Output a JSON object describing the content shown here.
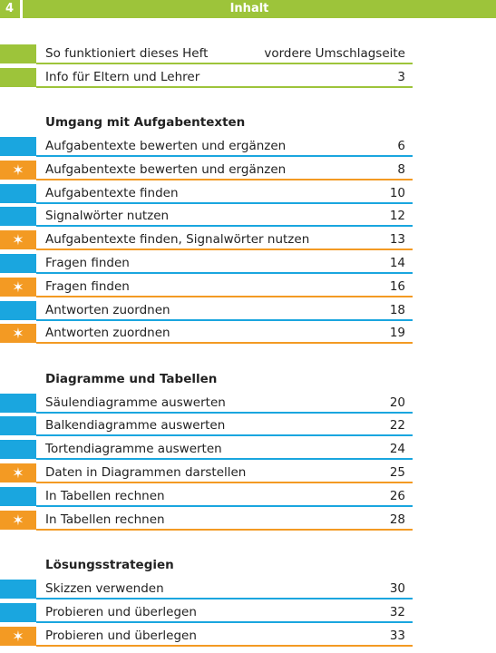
{
  "header": {
    "page_number": "4",
    "title": "Inhalt"
  },
  "sections": [
    {
      "rows": [
        {
          "label": "So funktioniert dieses Heft",
          "page": "vordere Umschlagseite",
          "color": "#9dc43a"
        },
        {
          "label": "Info für Eltern und Lehrer",
          "page": "3",
          "color": "#9dc43a"
        }
      ]
    },
    {
      "title": "Umgang mit Aufgabentexten",
      "rows": [
        {
          "label": "Aufgabentexte bewerten und ergänzen",
          "page": "6",
          "color": "#1aa6df"
        },
        {
          "label": "Aufgabentexte bewerten und ergänzen",
          "page": "8",
          "color": "#f39a23"
        },
        {
          "label": "Aufgabentexte finden",
          "page": "10",
          "color": "#1aa6df"
        },
        {
          "label": "Signalwörter nutzen",
          "page": "12",
          "color": "#1aa6df"
        },
        {
          "label": "Aufgabentexte finden, Signalwörter nutzen",
          "page": "13",
          "color": "#f39a23"
        },
        {
          "label": "Fragen finden",
          "page": "14",
          "color": "#1aa6df"
        },
        {
          "label": "Fragen finden",
          "page": "16",
          "color": "#f39a23"
        },
        {
          "label": "Antworten zuordnen",
          "page": "18",
          "color": "#1aa6df"
        },
        {
          "label": "Antworten zuordnen",
          "page": "19",
          "color": "#f39a23"
        }
      ]
    },
    {
      "title": "Diagramme und Tabellen",
      "rows": [
        {
          "label": "Säulendiagramme auswerten",
          "page": "20",
          "color": "#1aa6df"
        },
        {
          "label": "Balkendiagramme auswerten",
          "page": "22",
          "color": "#1aa6df"
        },
        {
          "label": "Tortendiagramme auswerten",
          "page": "24",
          "color": "#1aa6df"
        },
        {
          "label": "Daten in Diagrammen darstellen",
          "page": "25",
          "color": "#f39a23"
        },
        {
          "label": "In Tabellen rechnen",
          "page": "26",
          "color": "#1aa6df"
        },
        {
          "label": "In Tabellen rechnen",
          "page": "28",
          "color": "#f39a23"
        }
      ]
    },
    {
      "title": "Lösungsstrategien",
      "rows": [
        {
          "label": "Skizzen verwenden",
          "page": "30",
          "color": "#1aa6df"
        },
        {
          "label": "Probieren und überlegen",
          "page": "32",
          "color": "#1aa6df"
        },
        {
          "label": "Probieren und überlegen",
          "page": "33",
          "color": "#f39a23"
        }
      ]
    }
  ]
}
